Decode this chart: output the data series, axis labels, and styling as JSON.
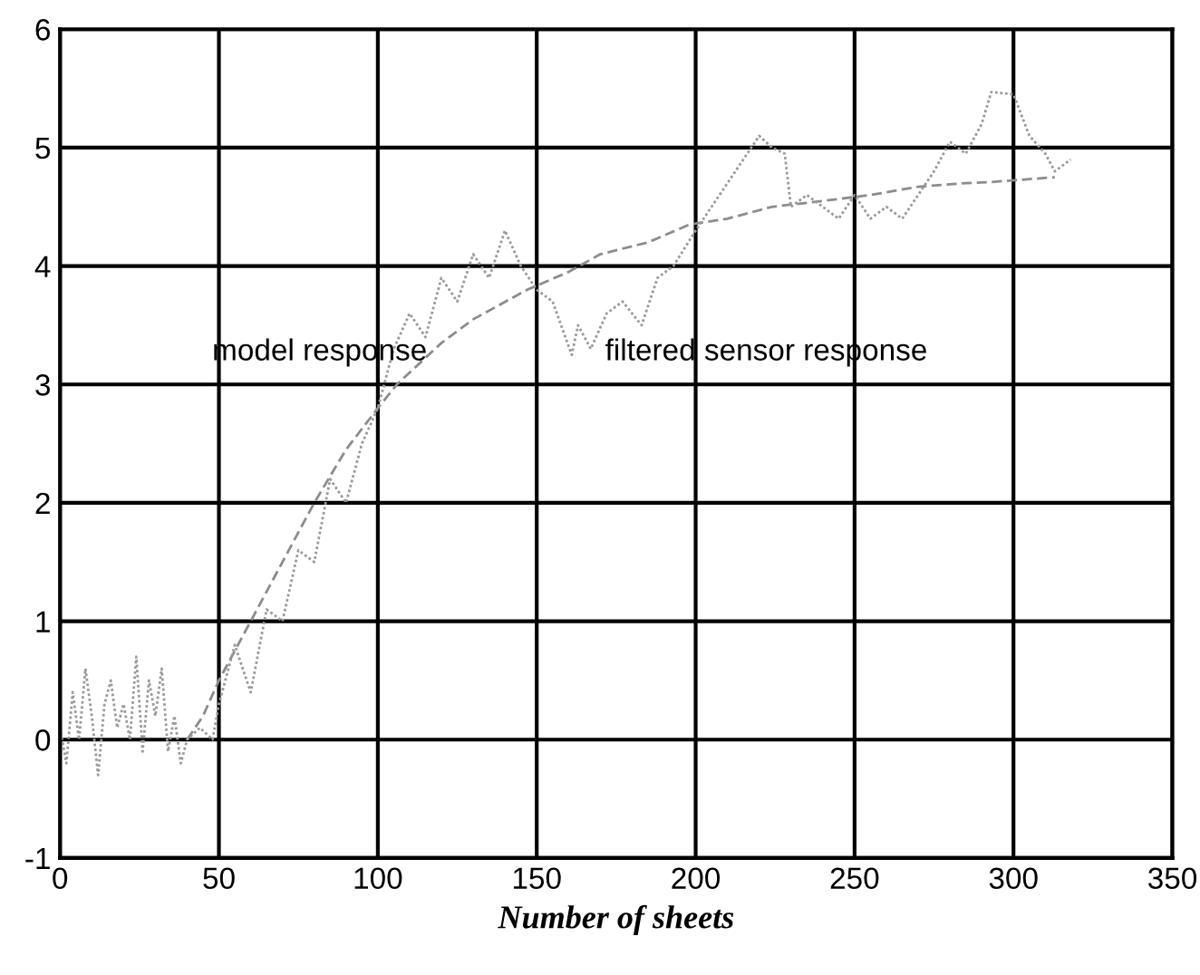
{
  "chart_data": {
    "type": "line",
    "xlabel": "Number of sheets",
    "xlim": [
      0,
      350
    ],
    "xticks": [
      0,
      50,
      100,
      150,
      200,
      250,
      300,
      350
    ],
    "ylim": [
      -1,
      6
    ],
    "yticks": [
      -1,
      0,
      1,
      2,
      3,
      4,
      5,
      6
    ],
    "grid": true,
    "legend": false,
    "marker": "none",
    "series": [
      {
        "name": "model response",
        "color": "#8c8c8c",
        "line_style": "dashed",
        "x": [
          40,
          45,
          50,
          60,
          70,
          80,
          90,
          100,
          106,
          120,
          130,
          147,
          160,
          170,
          185,
          198,
          210,
          224,
          240,
          255,
          270,
          285,
          293,
          313
        ],
        "values": [
          0,
          0.2,
          0.5,
          1.0,
          1.5,
          2.0,
          2.45,
          2.8,
          3.0,
          3.35,
          3.55,
          3.8,
          3.95,
          4.1,
          4.2,
          4.35,
          4.4,
          4.5,
          4.55,
          4.6,
          4.67,
          4.7,
          4.71,
          4.75
        ]
      },
      {
        "name": "filtered sensor response",
        "color": "#9a9a9a",
        "line_style": "dotted",
        "x": [
          0,
          2,
          4,
          6,
          8,
          10,
          12,
          14,
          16,
          18,
          20,
          22,
          24,
          26,
          28,
          30,
          32,
          34,
          36,
          38,
          40,
          44,
          48,
          50,
          55,
          60,
          65,
          70,
          75,
          80,
          85,
          90,
          95,
          100,
          105,
          110,
          115,
          120,
          125,
          130,
          135,
          140,
          145,
          150,
          155,
          161,
          163,
          167,
          172,
          177,
          183,
          188,
          193,
          200,
          205,
          210,
          215,
          220,
          224,
          228,
          230,
          235,
          240,
          245,
          250,
          255,
          260,
          265,
          270,
          275,
          280,
          285,
          290,
          293,
          300,
          305,
          310,
          313,
          318
        ],
        "values": [
          0.1,
          -0.2,
          0.4,
          0.0,
          0.6,
          0.2,
          -0.3,
          0.3,
          0.5,
          0.1,
          0.3,
          0.0,
          0.7,
          -0.1,
          0.5,
          0.2,
          0.6,
          -0.1,
          0.2,
          -0.2,
          0.0,
          0.1,
          0.0,
          0.3,
          0.8,
          0.4,
          1.1,
          1.0,
          1.6,
          1.5,
          2.2,
          2.0,
          2.5,
          2.8,
          3.3,
          3.6,
          3.4,
          3.9,
          3.7,
          4.1,
          3.9,
          4.3,
          4.0,
          3.8,
          3.7,
          3.25,
          3.5,
          3.3,
          3.6,
          3.7,
          3.5,
          3.9,
          4.0,
          4.3,
          4.5,
          4.7,
          4.9,
          5.1,
          5.0,
          4.95,
          4.5,
          4.6,
          4.5,
          4.4,
          4.6,
          4.4,
          4.5,
          4.4,
          4.6,
          4.8,
          5.05,
          4.95,
          5.2,
          5.47,
          5.45,
          5.1,
          4.95,
          4.8,
          4.9
        ]
      }
    ]
  }
}
